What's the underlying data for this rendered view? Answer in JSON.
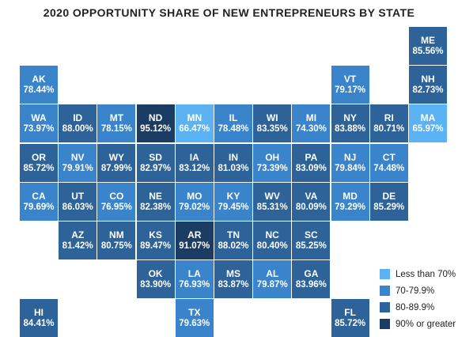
{
  "title": "2020 OPPORTUNITY SHARE OF NEW ENTREPRENEURS BY STATE",
  "colors": {
    "lt70": "#5cb3f3",
    "70to79": "#3a84cb",
    "80to89": "#2d6399",
    "90plus": "#1c3d63"
  },
  "legend": [
    {
      "label": "Less than 70%",
      "color": "#5cb3f3"
    },
    {
      "label": "70-79.9%",
      "color": "#3a84cb"
    },
    {
      "label": "80-89.9%",
      "color": "#2d6399"
    },
    {
      "label": "90% or greater",
      "color": "#1c3d63"
    }
  ],
  "states": [
    {
      "abbr": "ME",
      "value": "85.56%",
      "pct": 85.56
    },
    {
      "abbr": "AK",
      "value": "78.44%",
      "pct": 78.44
    },
    {
      "abbr": "VT",
      "value": "79.17%",
      "pct": 79.17
    },
    {
      "abbr": "NH",
      "value": "82.73%",
      "pct": 82.73
    },
    {
      "abbr": "WA",
      "value": "73.97%",
      "pct": 73.97
    },
    {
      "abbr": "ID",
      "value": "88.00%",
      "pct": 88.0
    },
    {
      "abbr": "MT",
      "value": "78.15%",
      "pct": 78.15
    },
    {
      "abbr": "ND",
      "value": "95.12%",
      "pct": 95.12
    },
    {
      "abbr": "MN",
      "value": "66.47%",
      "pct": 66.47
    },
    {
      "abbr": "IL",
      "value": "78.48%",
      "pct": 78.48
    },
    {
      "abbr": "WI",
      "value": "83.35%",
      "pct": 83.35
    },
    {
      "abbr": "MI",
      "value": "74.30%",
      "pct": 74.3
    },
    {
      "abbr": "NY",
      "value": "83.88%",
      "pct": 83.88
    },
    {
      "abbr": "RI",
      "value": "80.71%",
      "pct": 80.71
    },
    {
      "abbr": "MA",
      "value": "65.97%",
      "pct": 65.97
    },
    {
      "abbr": "OR",
      "value": "85.72%",
      "pct": 85.72
    },
    {
      "abbr": "NV",
      "value": "79.91%",
      "pct": 79.91
    },
    {
      "abbr": "WY",
      "value": "87.99%",
      "pct": 87.99
    },
    {
      "abbr": "SD",
      "value": "82.97%",
      "pct": 82.97
    },
    {
      "abbr": "IA",
      "value": "83.12%",
      "pct": 83.12
    },
    {
      "abbr": "IN",
      "value": "81.03%",
      "pct": 81.03
    },
    {
      "abbr": "OH",
      "value": "73.39%",
      "pct": 73.39
    },
    {
      "abbr": "PA",
      "value": "83.09%",
      "pct": 83.09
    },
    {
      "abbr": "NJ",
      "value": "79.84%",
      "pct": 79.84
    },
    {
      "abbr": "CT",
      "value": "74.48%",
      "pct": 74.48
    },
    {
      "abbr": "CA",
      "value": "79.69%",
      "pct": 79.69
    },
    {
      "abbr": "UT",
      "value": "86.03%",
      "pct": 86.03
    },
    {
      "abbr": "CO",
      "value": "76.95%",
      "pct": 76.95
    },
    {
      "abbr": "NE",
      "value": "82.38%",
      "pct": 82.38
    },
    {
      "abbr": "MO",
      "value": "79.02%",
      "pct": 79.02
    },
    {
      "abbr": "KY",
      "value": "79.45%",
      "pct": 79.45
    },
    {
      "abbr": "WV",
      "value": "85.31%",
      "pct": 85.31
    },
    {
      "abbr": "VA",
      "value": "80.09%",
      "pct": 80.09
    },
    {
      "abbr": "MD",
      "value": "79.29%",
      "pct": 79.29
    },
    {
      "abbr": "DE",
      "value": "85.29%",
      "pct": 85.29
    },
    {
      "abbr": "AZ",
      "value": "81.42%",
      "pct": 81.42
    },
    {
      "abbr": "NM",
      "value": "80.75%",
      "pct": 80.75
    },
    {
      "abbr": "KS",
      "value": "89.47%",
      "pct": 89.47
    },
    {
      "abbr": "AR",
      "value": "91.07%",
      "pct": 91.07
    },
    {
      "abbr": "TN",
      "value": "88.02%",
      "pct": 88.02
    },
    {
      "abbr": "NC",
      "value": "80.40%",
      "pct": 80.4
    },
    {
      "abbr": "SC",
      "value": "85.25%",
      "pct": 85.25
    },
    {
      "abbr": "OK",
      "value": "83.90%",
      "pct": 83.9
    },
    {
      "abbr": "LA",
      "value": "76.93%",
      "pct": 76.93
    },
    {
      "abbr": "MS",
      "value": "83.87%",
      "pct": 83.87
    },
    {
      "abbr": "AL",
      "value": "79.87%",
      "pct": 79.87
    },
    {
      "abbr": "GA",
      "value": "83.96%",
      "pct": 83.96
    },
    {
      "abbr": "HI",
      "value": "84.41%",
      "pct": 84.41
    },
    {
      "abbr": "TX",
      "value": "79.63%",
      "pct": 79.63
    },
    {
      "abbr": "FL",
      "value": "85.72%",
      "pct": 85.72
    }
  ]
}
